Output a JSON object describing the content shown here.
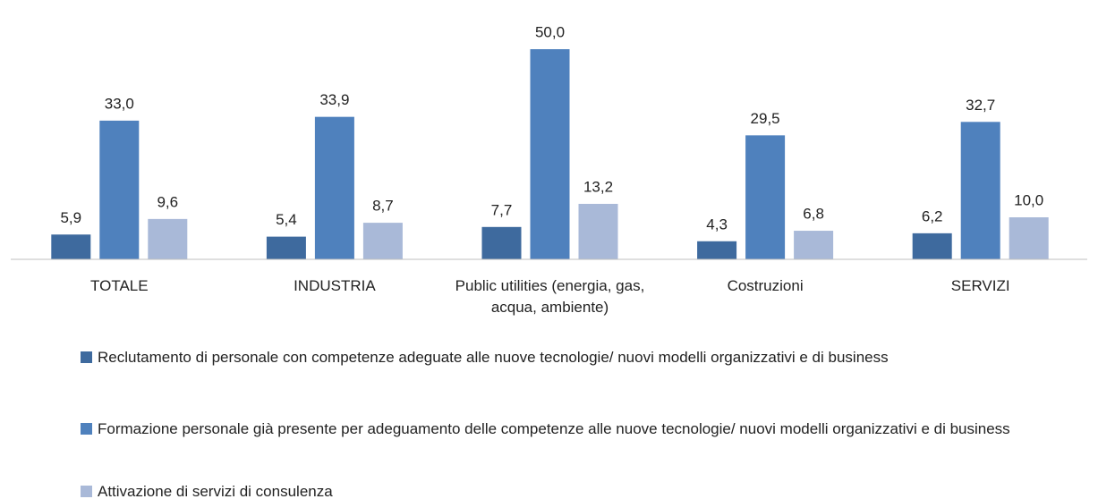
{
  "chart_data": {
    "type": "bar",
    "categories": [
      "TOTALE",
      "INDUSTRIA",
      "Public utilities (energia, gas, acqua, ambiente)",
      "Costruzioni",
      "SERVIZI"
    ],
    "series": [
      {
        "name": "Reclutamento di personale con competenze adeguate alle nuove tecnologie/ nuovi modelli organizzativi e di business",
        "color": "#3e6a9e",
        "values": [
          5.9,
          5.4,
          7.7,
          4.3,
          6.2
        ],
        "value_labels": [
          "5,9",
          "5,4",
          "7,7",
          "4,3",
          "6,2"
        ]
      },
      {
        "name": "Formazione personale già presente per adeguamento delle competenze alle nuove tecnologie/ nuovi modelli organizzativi e di business",
        "color": "#4f81bd",
        "values": [
          33.0,
          33.9,
          50.0,
          29.5,
          32.7
        ],
        "value_labels": [
          "33,0",
          "33,9",
          "50,0",
          "29,5",
          "32,7"
        ]
      },
      {
        "name": "Attivazione di servizi di consulenza",
        "color": "#a9b9d8",
        "values": [
          9.6,
          8.7,
          13.2,
          6.8,
          10.0
        ],
        "value_labels": [
          "9,6",
          "8,7",
          "13,2",
          "6,8",
          "10,0"
        ]
      }
    ],
    "ylim": [
      0,
      50
    ]
  }
}
